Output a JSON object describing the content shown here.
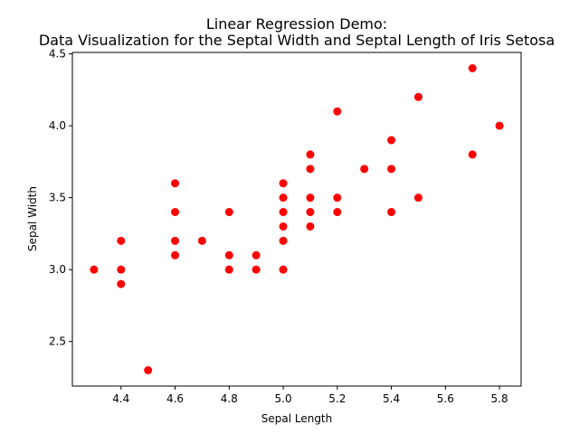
{
  "chart_data": {
    "type": "scatter",
    "title": "Linear Regression Demo:",
    "subtitle": "Data Visualization for the Septal Width and Septal Length of Iris Setosa",
    "xlabel": "Sepal Length",
    "ylabel": "Sepal Width",
    "xlim": [
      4.22,
      5.88
    ],
    "ylim": [
      2.19,
      4.51
    ],
    "xticks": [
      4.4,
      4.6,
      4.8,
      5.0,
      5.2,
      5.4,
      5.6,
      5.8
    ],
    "yticks": [
      2.5,
      3.0,
      3.5,
      4.0,
      4.5
    ],
    "marker_color": "#ff0000",
    "grid": false,
    "points": [
      [
        4.3,
        3.0
      ],
      [
        4.4,
        3.2
      ],
      [
        4.4,
        3.0
      ],
      [
        4.4,
        2.9
      ],
      [
        4.5,
        2.3
      ],
      [
        4.6,
        3.6
      ],
      [
        4.6,
        3.4
      ],
      [
        4.6,
        3.2
      ],
      [
        4.6,
        3.1
      ],
      [
        4.7,
        3.2
      ],
      [
        4.8,
        3.4
      ],
      [
        4.8,
        3.1
      ],
      [
        4.8,
        3.0
      ],
      [
        4.9,
        3.1
      ],
      [
        4.9,
        3.0
      ],
      [
        5.0,
        3.6
      ],
      [
        5.0,
        3.5
      ],
      [
        5.0,
        3.4
      ],
      [
        5.0,
        3.3
      ],
      [
        5.0,
        3.2
      ],
      [
        5.0,
        3.0
      ],
      [
        5.1,
        3.8
      ],
      [
        5.1,
        3.7
      ],
      [
        5.1,
        3.5
      ],
      [
        5.1,
        3.4
      ],
      [
        5.1,
        3.3
      ],
      [
        5.2,
        4.1
      ],
      [
        5.2,
        3.5
      ],
      [
        5.2,
        3.4
      ],
      [
        5.3,
        3.7
      ],
      [
        5.4,
        3.9
      ],
      [
        5.4,
        3.7
      ],
      [
        5.4,
        3.4
      ],
      [
        5.5,
        4.2
      ],
      [
        5.5,
        3.5
      ],
      [
        5.7,
        4.4
      ],
      [
        5.7,
        3.8
      ],
      [
        5.8,
        4.0
      ]
    ]
  }
}
